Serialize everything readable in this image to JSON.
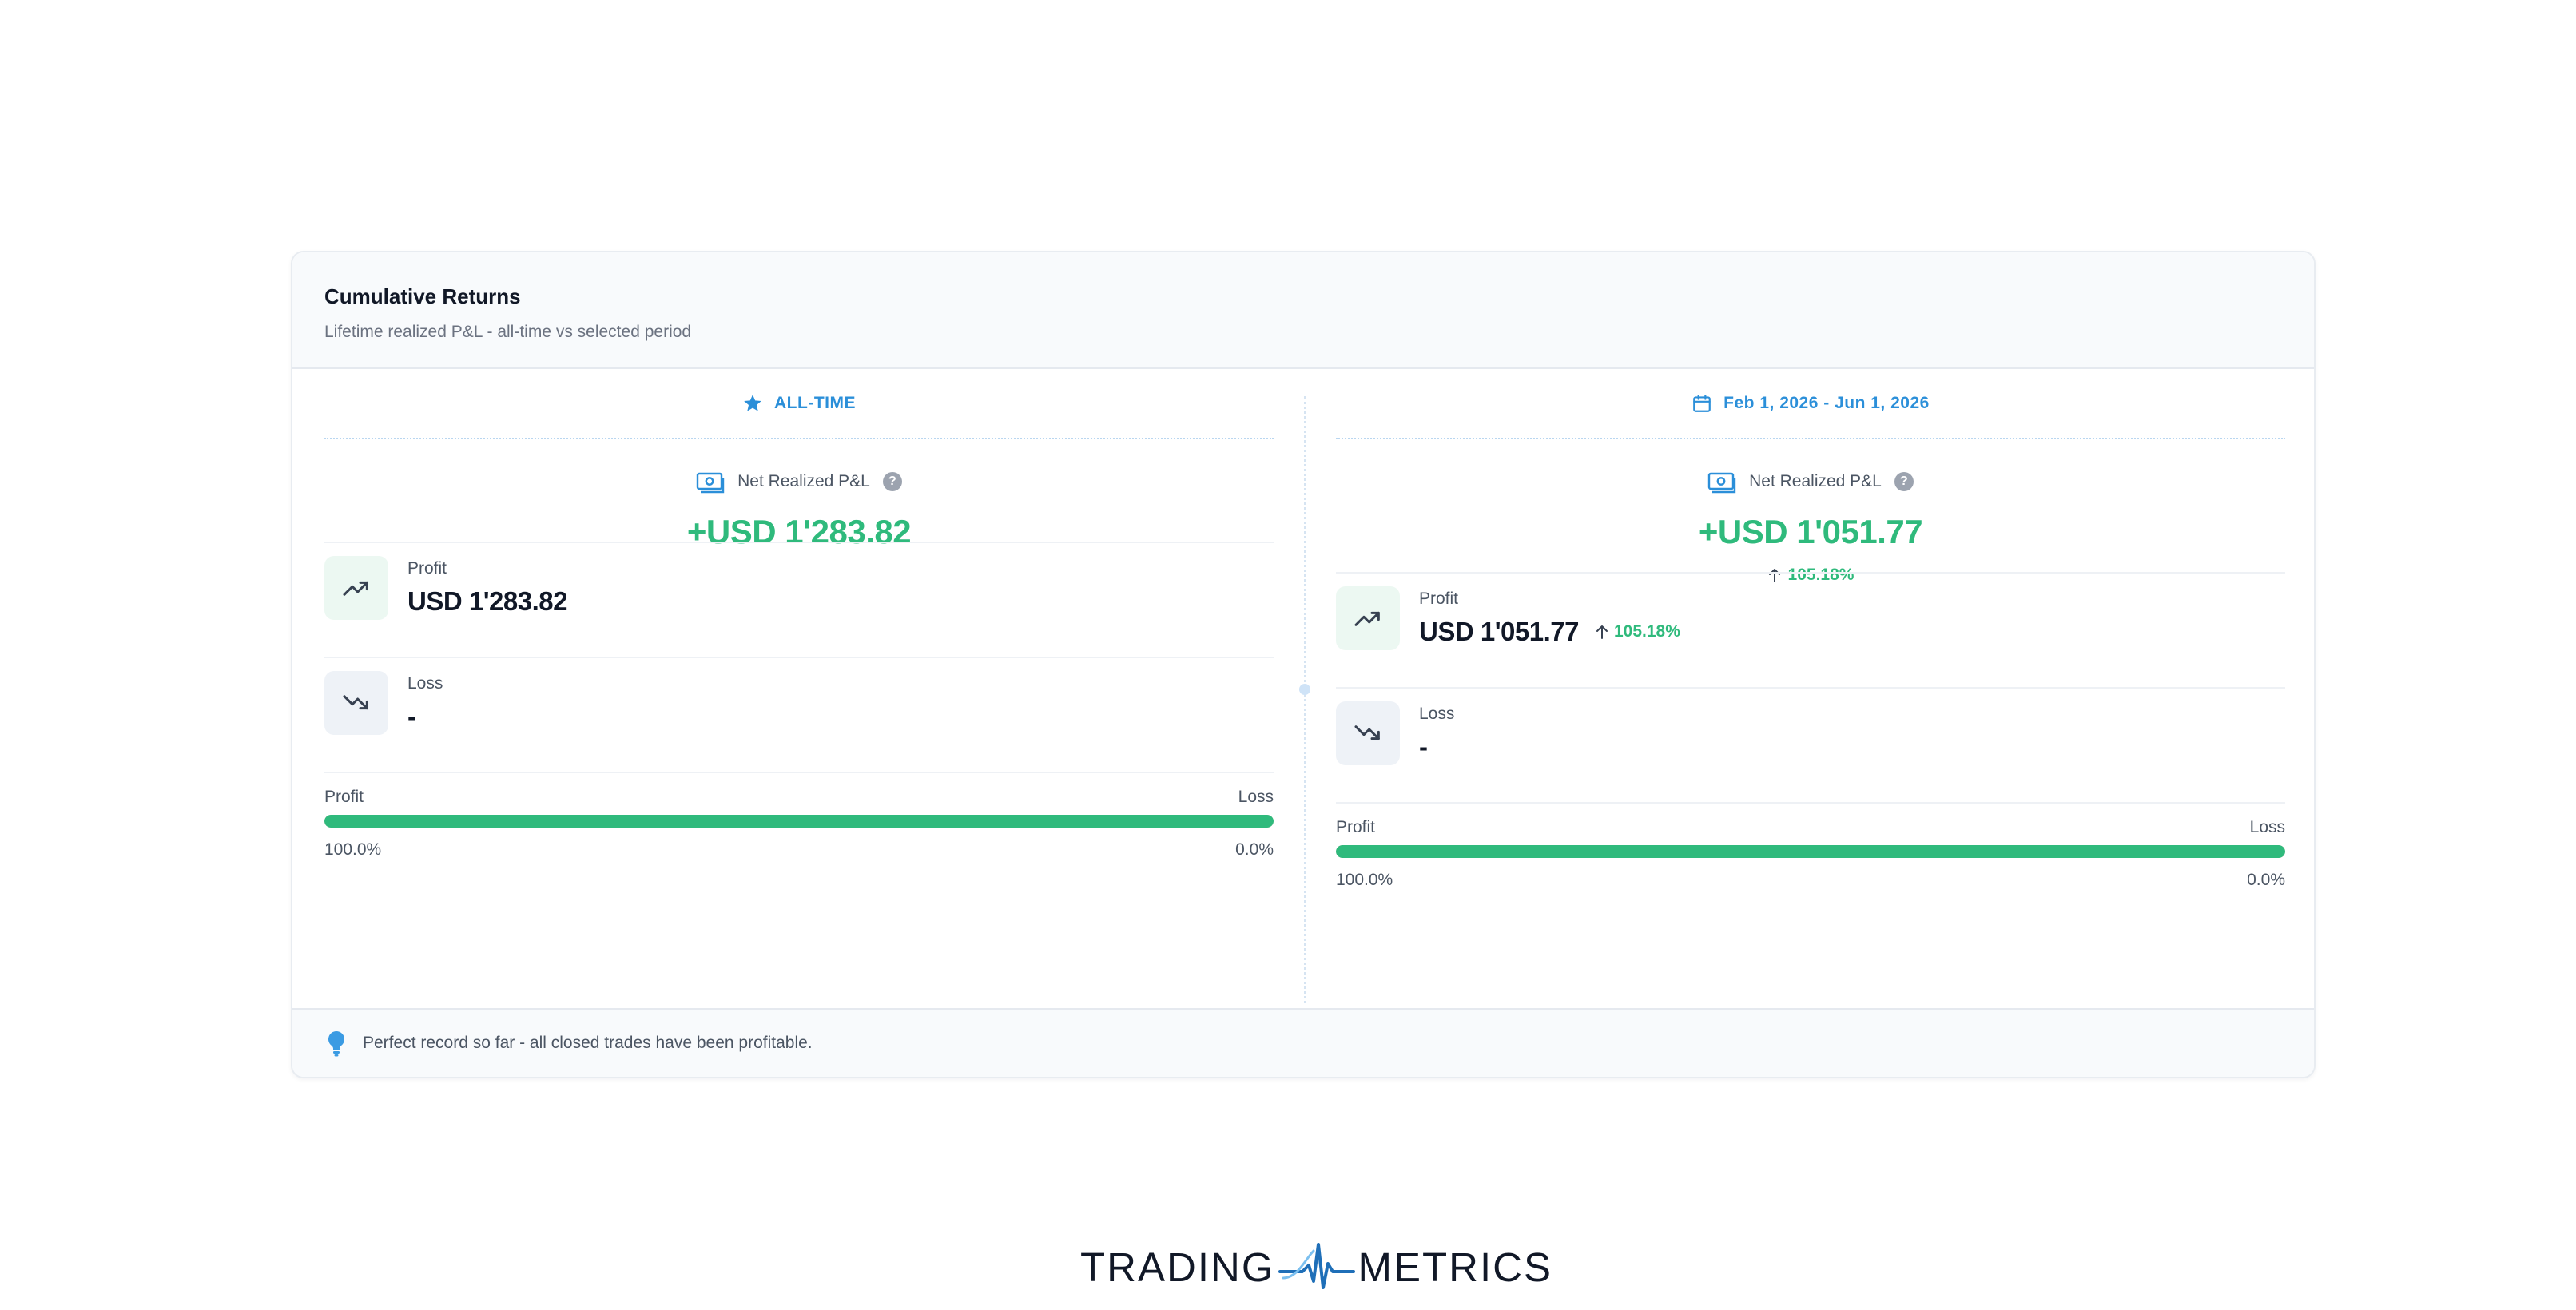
{
  "card": {
    "title": "Cumulative Returns",
    "subtitle": "Lifetime realized P&L - all-time vs selected period"
  },
  "columns": [
    {
      "header": "ALL-TIME",
      "header_icon": "star-icon",
      "net_label": "Net Realized P&L",
      "net_value": "+USD 1'283.82",
      "net_change": "",
      "profit_label": "Profit",
      "profit_value": "USD 1'283.82",
      "profit_change": "",
      "loss_label": "Loss",
      "loss_value": "-",
      "ratio_left_label": "Profit",
      "ratio_right_label": "Loss",
      "ratio_profit_fraction": 1.0,
      "ratio_left_pct": "100.0%",
      "ratio_right_pct": "0.0%"
    },
    {
      "header": "Feb 1, 2026 - Jun 1, 2026",
      "header_icon": "calendar-icon",
      "net_label": "Net Realized P&L",
      "net_value": "+USD 1'051.77",
      "net_change": "105.18%",
      "profit_label": "Profit",
      "profit_value": "USD 1'051.77",
      "profit_change": "105.18%",
      "loss_label": "Loss",
      "loss_value": "-",
      "ratio_left_label": "Profit",
      "ratio_right_label": "Loss",
      "ratio_profit_fraction": 1.0,
      "ratio_left_pct": "100.0%",
      "ratio_right_pct": "0.0%"
    }
  ],
  "footer": {
    "text": "Perfect record so far - all closed trades have been profitable.",
    "icon": "lightbulb-icon"
  },
  "brand": {
    "left": "TRADING",
    "right": "METRICS"
  },
  "colors": {
    "accent_blue": "#2b8fd9",
    "profit_green": "#2fba7c",
    "loss_red": "#f3c5c5"
  }
}
